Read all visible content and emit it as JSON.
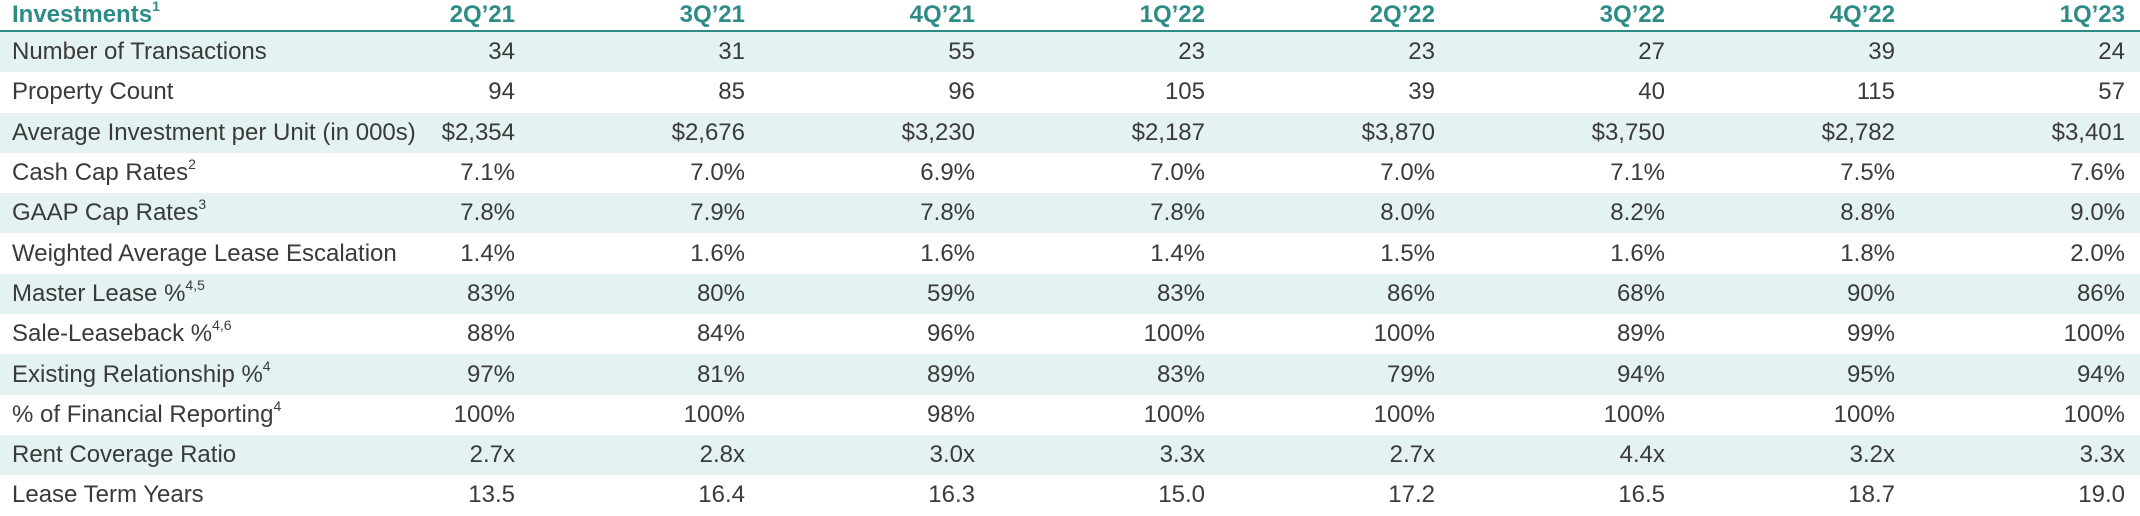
{
  "table": {
    "header": {
      "label": "Investments",
      "note": "1",
      "columns": [
        "2Q’21",
        "3Q’21",
        "4Q’21",
        "1Q’22",
        "2Q’22",
        "3Q’22",
        "4Q’22",
        "1Q’23"
      ]
    },
    "rows": [
      {
        "label": "Number of Transactions",
        "values": [
          "34",
          "31",
          "55",
          "23",
          "23",
          "27",
          "39",
          "24"
        ]
      },
      {
        "label": "Property Count",
        "values": [
          "94",
          "85",
          "96",
          "105",
          "39",
          "40",
          "115",
          "57"
        ]
      },
      {
        "label": "Average Investment per Unit (in 000s)",
        "values": [
          "$2,354",
          "$2,676",
          "$3,230",
          "$2,187",
          "$3,870",
          "$3,750",
          "$2,782",
          "$3,401"
        ]
      },
      {
        "label": "Cash Cap Rates",
        "note": "2",
        "values": [
          "7.1%",
          "7.0%",
          "6.9%",
          "7.0%",
          "7.0%",
          "7.1%",
          "7.5%",
          "7.6%"
        ]
      },
      {
        "label": "GAAP Cap Rates",
        "note": "3",
        "values": [
          "7.8%",
          "7.9%",
          "7.8%",
          "7.8%",
          "8.0%",
          "8.2%",
          "8.8%",
          "9.0%"
        ]
      },
      {
        "label": "Weighted Average Lease Escalation",
        "values": [
          "1.4%",
          "1.6%",
          "1.6%",
          "1.4%",
          "1.5%",
          "1.6%",
          "1.8%",
          "2.0%"
        ]
      },
      {
        "label": "Master Lease %",
        "note": "4,5",
        "values": [
          "83%",
          "80%",
          "59%",
          "83%",
          "86%",
          "68%",
          "90%",
          "86%"
        ]
      },
      {
        "label": "Sale-Leaseback %",
        "note": "4,6",
        "values": [
          "88%",
          "84%",
          "96%",
          "100%",
          "100%",
          "89%",
          "99%",
          "100%"
        ]
      },
      {
        "label": "Existing Relationship %",
        "note": "4",
        "values": [
          "97%",
          "81%",
          "89%",
          "83%",
          "79%",
          "94%",
          "95%",
          "94%"
        ]
      },
      {
        "label": "% of Financial Reporting",
        "note": "4",
        "values": [
          "100%",
          "100%",
          "98%",
          "100%",
          "100%",
          "100%",
          "100%",
          "100%"
        ]
      },
      {
        "label": "Rent Coverage Ratio",
        "values": [
          "2.7x",
          "2.8x",
          "3.0x",
          "3.3x",
          "2.7x",
          "4.4x",
          "3.2x",
          "3.3x"
        ]
      },
      {
        "label": "Lease Term Years",
        "values": [
          "13.5",
          "16.4",
          "16.3",
          "15.0",
          "17.2",
          "16.5",
          "18.7",
          "19.0"
        ]
      }
    ]
  }
}
